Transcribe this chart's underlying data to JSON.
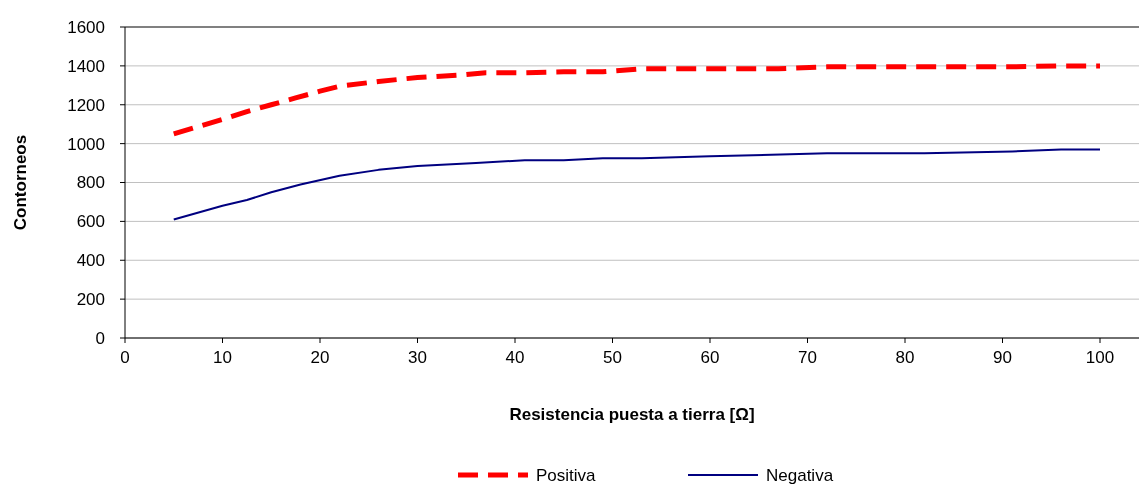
{
  "chart_data": {
    "type": "line",
    "xlabel": "Resistencia puesta a tierra [Ω]",
    "ylabel": "Contorneos",
    "xlim": [
      0,
      104
    ],
    "xticks": [
      0,
      10,
      20,
      30,
      40,
      50,
      60,
      70,
      80,
      90,
      100
    ],
    "ylim": [
      0,
      1600
    ],
    "yticks": [
      0,
      200,
      400,
      600,
      800,
      1000,
      1200,
      1400,
      1600
    ],
    "grid": "y",
    "legend": "bottom",
    "marker": "none",
    "series": [
      {
        "name": "Positiva",
        "color": "#ff0000",
        "line_style": "dashed",
        "x": [
          5,
          7,
          10,
          12.5,
          15,
          17.5,
          20,
          22,
          26,
          30,
          35,
          37,
          41,
          45,
          49,
          53,
          60,
          67,
          72,
          82,
          91,
          96,
          100
        ],
        "values": [
          1050,
          1080,
          1125,
          1165,
          1200,
          1235,
          1270,
          1295,
          1320,
          1340,
          1355,
          1365,
          1365,
          1370,
          1370,
          1385,
          1385,
          1385,
          1395,
          1395,
          1395,
          1400,
          1400
        ]
      },
      {
        "name": "Negativa",
        "color": "#000080",
        "line_style": "solid",
        "x": [
          5,
          10,
          12.5,
          15,
          18,
          22,
          26,
          30,
          36,
          41,
          45,
          49,
          53,
          60,
          72,
          82,
          91,
          96,
          100
        ],
        "values": [
          610,
          680,
          710,
          750,
          790,
          835,
          865,
          885,
          900,
          915,
          915,
          925,
          925,
          935,
          950,
          950,
          960,
          970,
          970
        ]
      }
    ]
  }
}
